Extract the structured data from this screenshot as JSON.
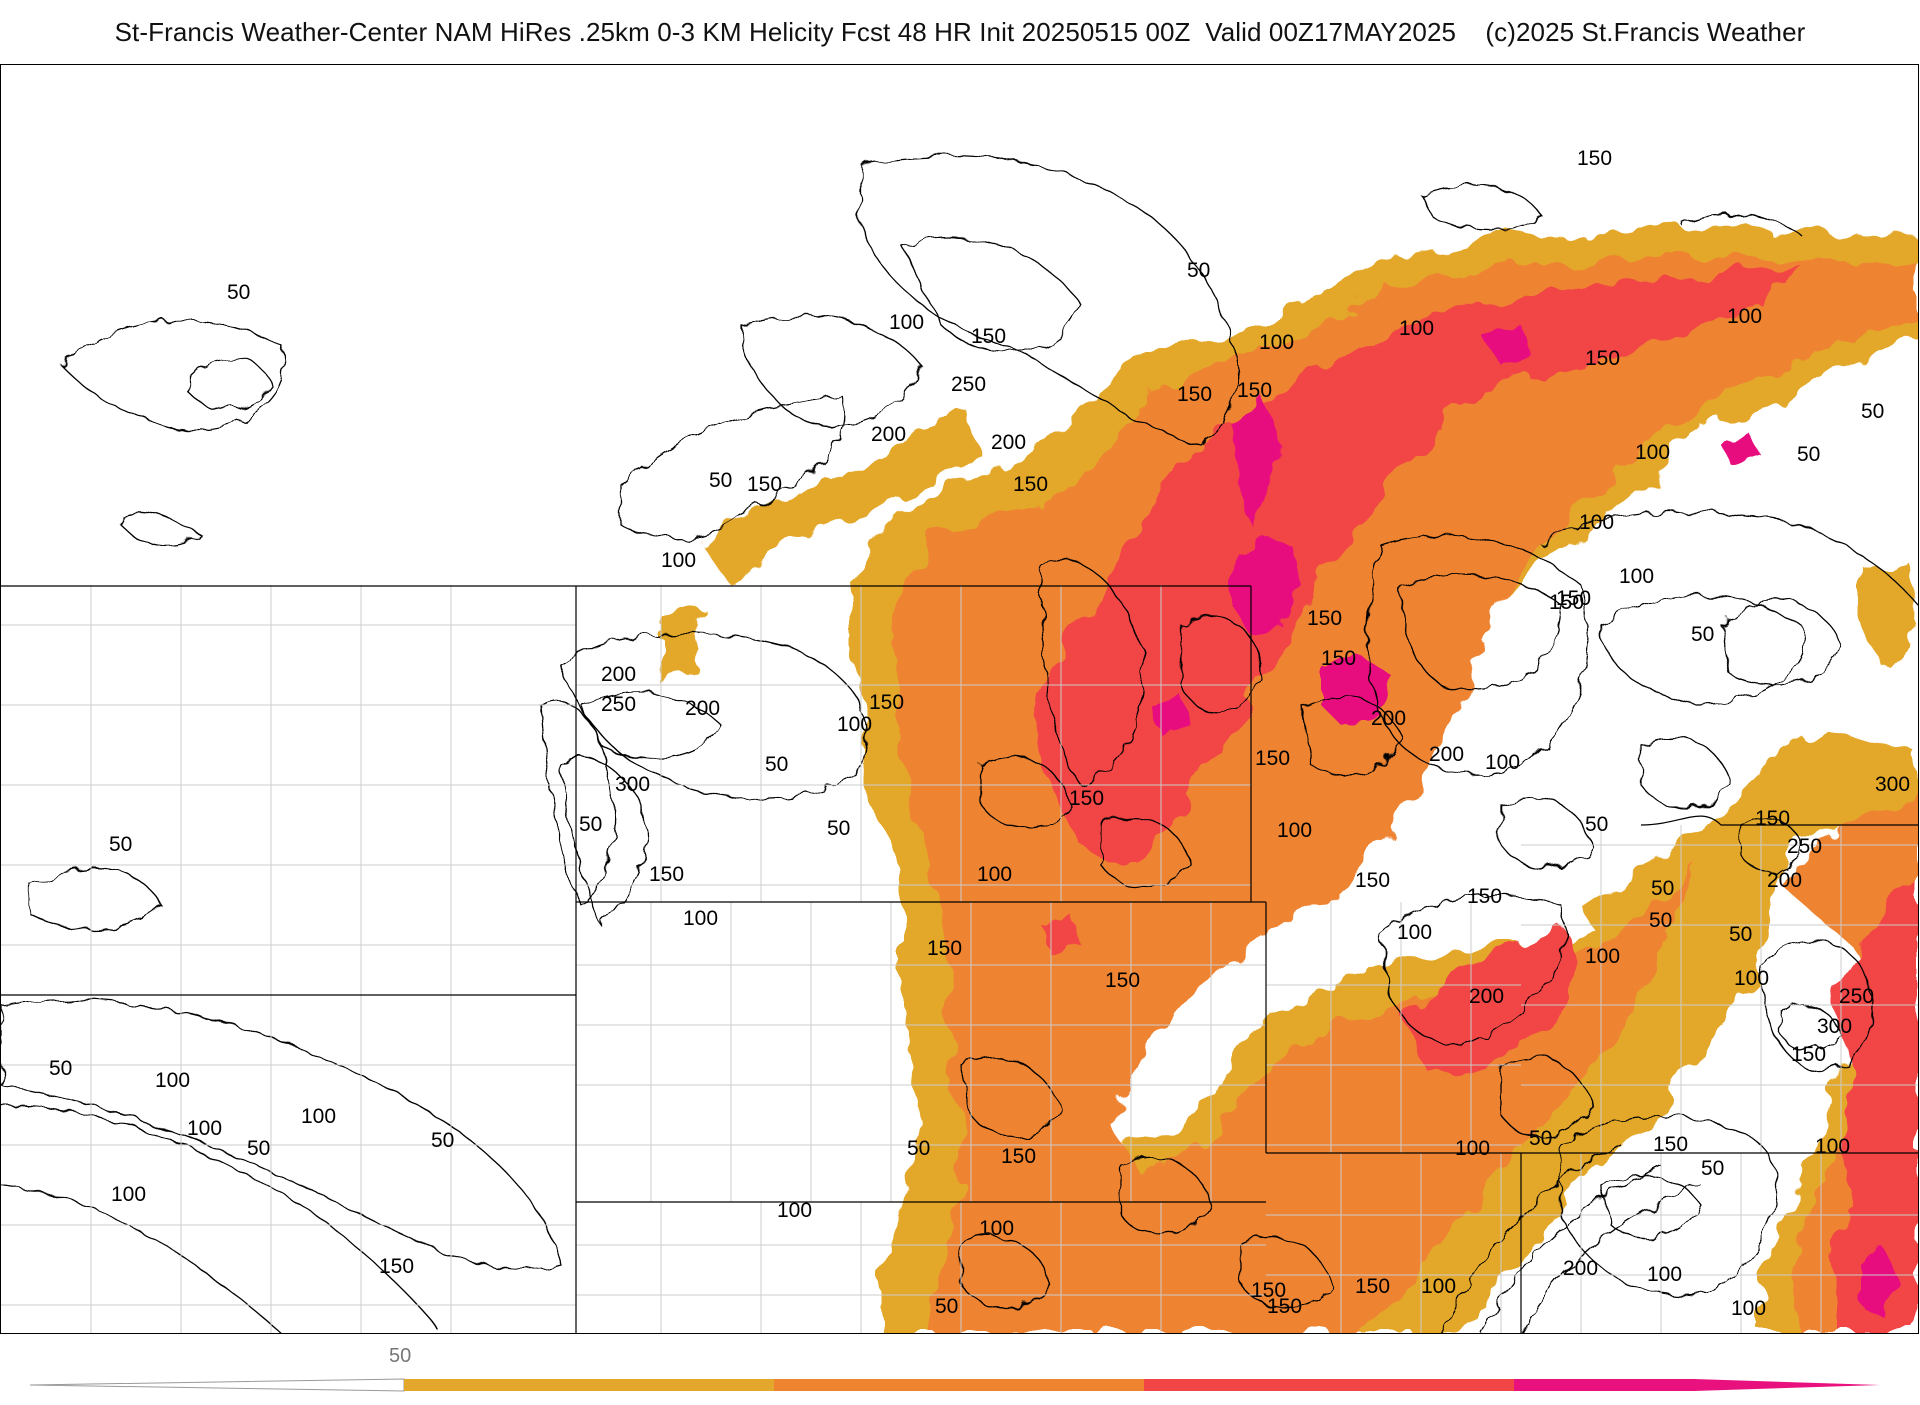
{
  "title": "St-Francis Weather-Center NAM HiRes .25km 0-3 KM Helicity Fcst 48 HR Init 20250515 00Z  Valid 00Z17MAY2025    (c)2025 St.Francis Weather",
  "colors": {
    "level_50": "#e3a82b",
    "level_100": "#ee8430",
    "level_150": "#f24545",
    "level_200": "#e8117e",
    "contour": "#000000",
    "state_border": "#000000",
    "county_border": "#cccccc"
  },
  "colorbar": {
    "tick_labels": [
      "50"
    ],
    "levels": [
      50,
      100,
      150,
      200
    ],
    "colors": [
      "#e3a82b",
      "#ee8430",
      "#f24545",
      "#e8117e"
    ]
  },
  "contour_labels": [
    "50",
    "100",
    "150",
    "250",
    "200",
    "200",
    "150",
    "50",
    "100",
    "150",
    "100",
    "150",
    "50",
    "150",
    "100",
    "150",
    "150",
    "100",
    "150",
    "150",
    "100",
    "150",
    "50",
    "100",
    "50",
    "150",
    "100",
    "50",
    "200",
    "250",
    "200",
    "100",
    "50",
    "300",
    "50",
    "150",
    "100",
    "50",
    "150",
    "100",
    "100",
    "150",
    "150",
    "200",
    "150",
    "200",
    "100",
    "150",
    "100",
    "50",
    "150",
    "200",
    "100",
    "50",
    "300",
    "250",
    "200",
    "100",
    "250",
    "300",
    "150",
    "50",
    "50",
    "100",
    "150",
    "100",
    "150",
    "50",
    "100",
    "50",
    "200",
    "100",
    "150",
    "100",
    "150",
    "100",
    "50",
    "150",
    "100",
    "100",
    "50",
    "50",
    "50",
    "100",
    "100",
    "150",
    "50",
    "50",
    "100",
    "150",
    "150"
  ]
}
